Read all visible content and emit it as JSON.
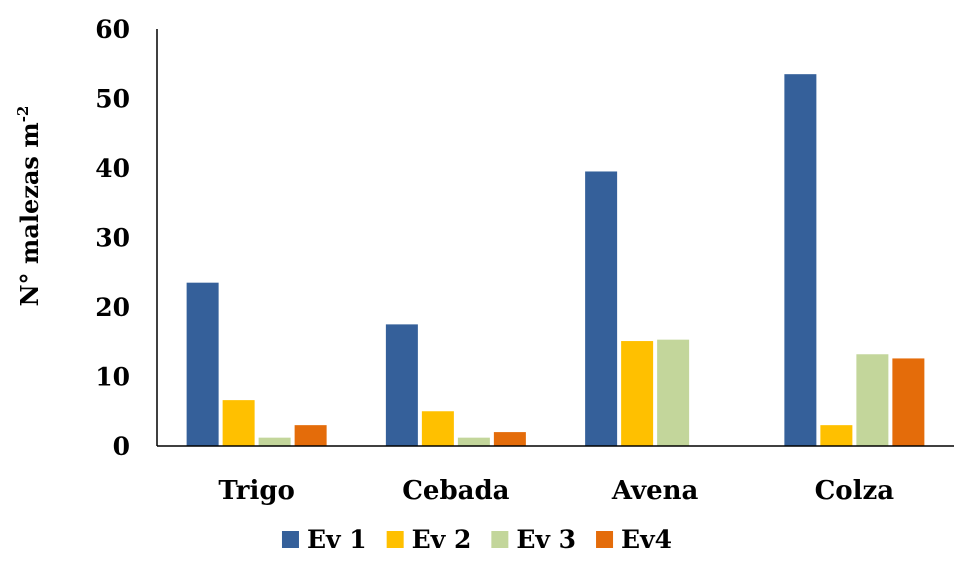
{
  "chart_data": {
    "type": "bar",
    "categories": [
      "Trigo",
      "Cebada",
      "Avena",
      "Colza"
    ],
    "series": [
      {
        "name": "Ev 1",
        "color": "#35609A",
        "values": [
          23.5,
          17.5,
          39.5,
          53.5
        ]
      },
      {
        "name": "Ev 2",
        "color": "#FFC000",
        "values": [
          6.6,
          5.0,
          15.1,
          3.0
        ]
      },
      {
        "name": "Ev 3",
        "color": "#C3D69B",
        "values": [
          1.2,
          1.2,
          15.3,
          13.2
        ]
      },
      {
        "name": "Ev4",
        "color": "#E46C0A",
        "values": [
          3.0,
          2.0,
          0,
          12.6
        ]
      }
    ],
    "ylabel": "N° malezas m",
    "ylabel_sup": "-2",
    "ylim": [
      0,
      60
    ],
    "yticks": [
      "0",
      "10",
      "20",
      "30",
      "40",
      "50",
      "60"
    ],
    "grid": false,
    "legend_position": "bottom"
  }
}
